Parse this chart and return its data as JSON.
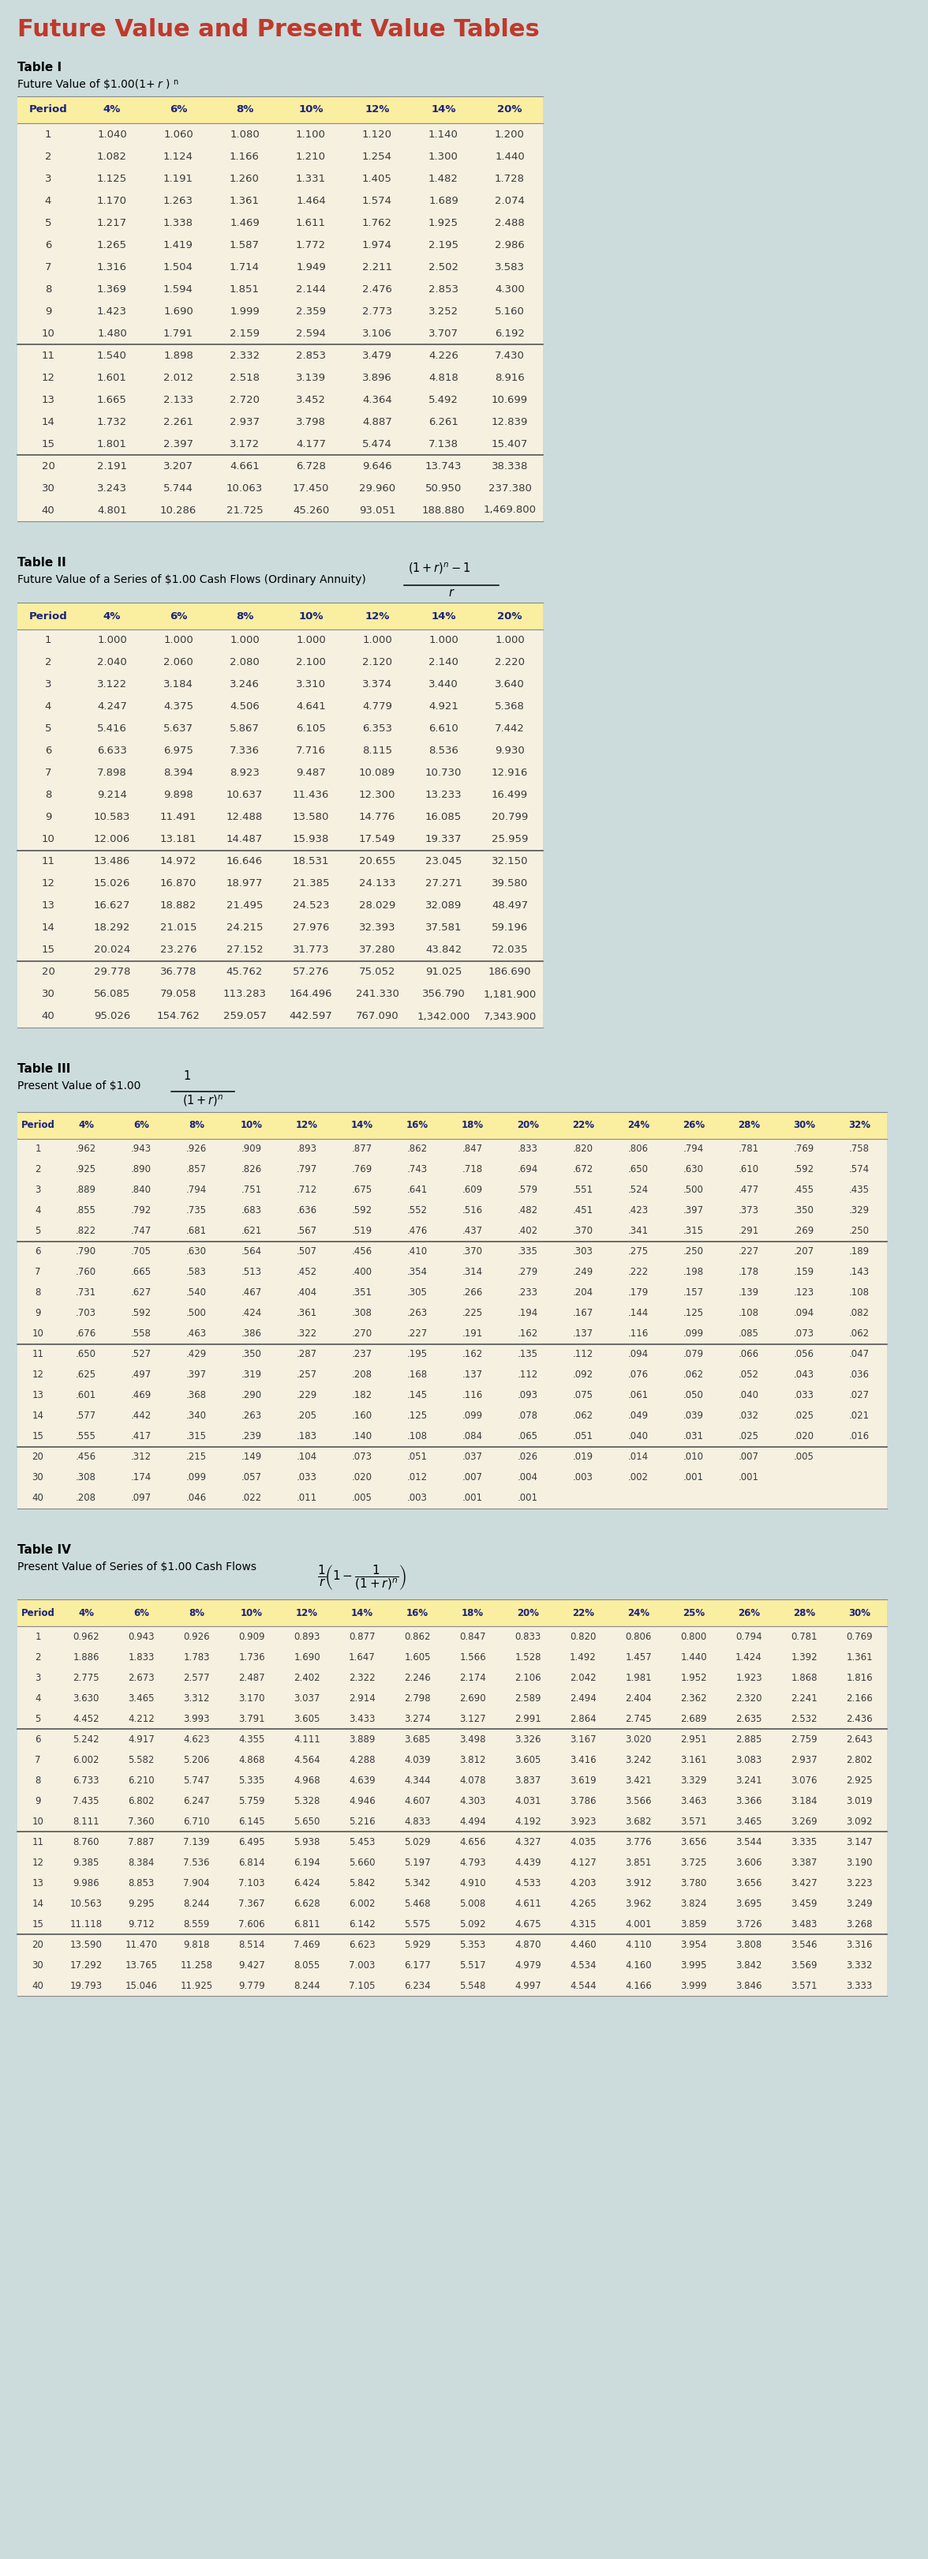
{
  "main_title": "Future Value and Present Value Tables",
  "bg_color": "#ccdcdc",
  "table_bg": "#f5f0e0",
  "header_bg": "#faeea0",
  "header_text_color": "#1a237e",
  "body_text_color": "#3a3a3a",
  "title_color": "#c0392b",
  "table1_title": "Table I",
  "table1_subtitle": "Future Value of $1.00(1+r)",
  "table1_subtitle_sup": "n",
  "table1_headers": [
    "Period",
    "4%",
    "6%",
    "8%",
    "10%",
    "12%",
    "14%",
    "20%"
  ],
  "table1_data": [
    [
      "1",
      "1.040",
      "1.060",
      "1.080",
      "1.100",
      "1.120",
      "1.140",
      "1.200"
    ],
    [
      "2",
      "1.082",
      "1.124",
      "1.166",
      "1.210",
      "1.254",
      "1.300",
      "1.440"
    ],
    [
      "3",
      "1.125",
      "1.191",
      "1.260",
      "1.331",
      "1.405",
      "1.482",
      "1.728"
    ],
    [
      "4",
      "1.170",
      "1.263",
      "1.361",
      "1.464",
      "1.574",
      "1.689",
      "2.074"
    ],
    [
      "5",
      "1.217",
      "1.338",
      "1.469",
      "1.611",
      "1.762",
      "1.925",
      "2.488"
    ],
    [
      "6",
      "1.265",
      "1.419",
      "1.587",
      "1.772",
      "1.974",
      "2.195",
      "2.986"
    ],
    [
      "7",
      "1.316",
      "1.504",
      "1.714",
      "1.949",
      "2.211",
      "2.502",
      "3.583"
    ],
    [
      "8",
      "1.369",
      "1.594",
      "1.851",
      "2.144",
      "2.476",
      "2.853",
      "4.300"
    ],
    [
      "9",
      "1.423",
      "1.690",
      "1.999",
      "2.359",
      "2.773",
      "3.252",
      "5.160"
    ],
    [
      "10",
      "1.480",
      "1.791",
      "2.159",
      "2.594",
      "3.106",
      "3.707",
      "6.192"
    ],
    [
      "11",
      "1.540",
      "1.898",
      "2.332",
      "2.853",
      "3.479",
      "4.226",
      "7.430"
    ],
    [
      "12",
      "1.601",
      "2.012",
      "2.518",
      "3.139",
      "3.896",
      "4.818",
      "8.916"
    ],
    [
      "13",
      "1.665",
      "2.133",
      "2.720",
      "3.452",
      "4.364",
      "5.492",
      "10.699"
    ],
    [
      "14",
      "1.732",
      "2.261",
      "2.937",
      "3.798",
      "4.887",
      "6.261",
      "12.839"
    ],
    [
      "15",
      "1.801",
      "2.397",
      "3.172",
      "4.177",
      "5.474",
      "7.138",
      "15.407"
    ],
    [
      "20",
      "2.191",
      "3.207",
      "4.661",
      "6.728",
      "9.646",
      "13.743",
      "38.338"
    ],
    [
      "30",
      "3.243",
      "5.744",
      "10.063",
      "17.450",
      "29.960",
      "50.950",
      "237.380"
    ],
    [
      "40",
      "4.801",
      "10.286",
      "21.725",
      "45.260",
      "93.051",
      "188.880",
      "1,469.800"
    ]
  ],
  "table1_separator_after": [
    10,
    15
  ],
  "table2_title": "Table II",
  "table2_subtitle": "Future Value of a Series of $1.00 Cash Flows (Ordinary Annuity)",
  "table2_headers": [
    "Period",
    "4%",
    "6%",
    "8%",
    "10%",
    "12%",
    "14%",
    "20%"
  ],
  "table2_data": [
    [
      "1",
      "1.000",
      "1.000",
      "1.000",
      "1.000",
      "1.000",
      "1.000",
      "1.000"
    ],
    [
      "2",
      "2.040",
      "2.060",
      "2.080",
      "2.100",
      "2.120",
      "2.140",
      "2.220"
    ],
    [
      "3",
      "3.122",
      "3.184",
      "3.246",
      "3.310",
      "3.374",
      "3.440",
      "3.640"
    ],
    [
      "4",
      "4.247",
      "4.375",
      "4.506",
      "4.641",
      "4.779",
      "4.921",
      "5.368"
    ],
    [
      "5",
      "5.416",
      "5.637",
      "5.867",
      "6.105",
      "6.353",
      "6.610",
      "7.442"
    ],
    [
      "6",
      "6.633",
      "6.975",
      "7.336",
      "7.716",
      "8.115",
      "8.536",
      "9.930"
    ],
    [
      "7",
      "7.898",
      "8.394",
      "8.923",
      "9.487",
      "10.089",
      "10.730",
      "12.916"
    ],
    [
      "8",
      "9.214",
      "9.898",
      "10.637",
      "11.436",
      "12.300",
      "13.233",
      "16.499"
    ],
    [
      "9",
      "10.583",
      "11.491",
      "12.488",
      "13.580",
      "14.776",
      "16.085",
      "20.799"
    ],
    [
      "10",
      "12.006",
      "13.181",
      "14.487",
      "15.938",
      "17.549",
      "19.337",
      "25.959"
    ],
    [
      "11",
      "13.486",
      "14.972",
      "16.646",
      "18.531",
      "20.655",
      "23.045",
      "32.150"
    ],
    [
      "12",
      "15.026",
      "16.870",
      "18.977",
      "21.385",
      "24.133",
      "27.271",
      "39.580"
    ],
    [
      "13",
      "16.627",
      "18.882",
      "21.495",
      "24.523",
      "28.029",
      "32.089",
      "48.497"
    ],
    [
      "14",
      "18.292",
      "21.015",
      "24.215",
      "27.976",
      "32.393",
      "37.581",
      "59.196"
    ],
    [
      "15",
      "20.024",
      "23.276",
      "27.152",
      "31.773",
      "37.280",
      "43.842",
      "72.035"
    ],
    [
      "20",
      "29.778",
      "36.778",
      "45.762",
      "57.276",
      "75.052",
      "91.025",
      "186.690"
    ],
    [
      "30",
      "56.085",
      "79.058",
      "113.283",
      "164.496",
      "241.330",
      "356.790",
      "1,181.900"
    ],
    [
      "40",
      "95.026",
      "154.762",
      "259.057",
      "442.597",
      "767.090",
      "1,342.000",
      "7,343.900"
    ]
  ],
  "table2_separator_after": [
    10,
    15
  ],
  "table3_title": "Table III",
  "table3_subtitle": "Present Value of $1.00",
  "table3_headers": [
    "Period",
    "4%",
    "6%",
    "8%",
    "10%",
    "12%",
    "14%",
    "16%",
    "18%",
    "20%",
    "22%",
    "24%",
    "26%",
    "28%",
    "30%",
    "32%"
  ],
  "table3_data": [
    [
      "1",
      ".962",
      ".943",
      ".926",
      ".909",
      ".893",
      ".877",
      ".862",
      ".847",
      ".833",
      ".820",
      ".806",
      ".794",
      ".781",
      ".769",
      ".758"
    ],
    [
      "2",
      ".925",
      ".890",
      ".857",
      ".826",
      ".797",
      ".769",
      ".743",
      ".718",
      ".694",
      ".672",
      ".650",
      ".630",
      ".610",
      ".592",
      ".574"
    ],
    [
      "3",
      ".889",
      ".840",
      ".794",
      ".751",
      ".712",
      ".675",
      ".641",
      ".609",
      ".579",
      ".551",
      ".524",
      ".500",
      ".477",
      ".455",
      ".435"
    ],
    [
      "4",
      ".855",
      ".792",
      ".735",
      ".683",
      ".636",
      ".592",
      ".552",
      ".516",
      ".482",
      ".451",
      ".423",
      ".397",
      ".373",
      ".350",
      ".329"
    ],
    [
      "5",
      ".822",
      ".747",
      ".681",
      ".621",
      ".567",
      ".519",
      ".476",
      ".437",
      ".402",
      ".370",
      ".341",
      ".315",
      ".291",
      ".269",
      ".250"
    ],
    [
      "6",
      ".790",
      ".705",
      ".630",
      ".564",
      ".507",
      ".456",
      ".410",
      ".370",
      ".335",
      ".303",
      ".275",
      ".250",
      ".227",
      ".207",
      ".189"
    ],
    [
      "7",
      ".760",
      ".665",
      ".583",
      ".513",
      ".452",
      ".400",
      ".354",
      ".314",
      ".279",
      ".249",
      ".222",
      ".198",
      ".178",
      ".159",
      ".143"
    ],
    [
      "8",
      ".731",
      ".627",
      ".540",
      ".467",
      ".404",
      ".351",
      ".305",
      ".266",
      ".233",
      ".204",
      ".179",
      ".157",
      ".139",
      ".123",
      ".108"
    ],
    [
      "9",
      ".703",
      ".592",
      ".500",
      ".424",
      ".361",
      ".308",
      ".263",
      ".225",
      ".194",
      ".167",
      ".144",
      ".125",
      ".108",
      ".094",
      ".082"
    ],
    [
      "10",
      ".676",
      ".558",
      ".463",
      ".386",
      ".322",
      ".270",
      ".227",
      ".191",
      ".162",
      ".137",
      ".116",
      ".099",
      ".085",
      ".073",
      ".062"
    ],
    [
      "11",
      ".650",
      ".527",
      ".429",
      ".350",
      ".287",
      ".237",
      ".195",
      ".162",
      ".135",
      ".112",
      ".094",
      ".079",
      ".066",
      ".056",
      ".047"
    ],
    [
      "12",
      ".625",
      ".497",
      ".397",
      ".319",
      ".257",
      ".208",
      ".168",
      ".137",
      ".112",
      ".092",
      ".076",
      ".062",
      ".052",
      ".043",
      ".036"
    ],
    [
      "13",
      ".601",
      ".469",
      ".368",
      ".290",
      ".229",
      ".182",
      ".145",
      ".116",
      ".093",
      ".075",
      ".061",
      ".050",
      ".040",
      ".033",
      ".027"
    ],
    [
      "14",
      ".577",
      ".442",
      ".340",
      ".263",
      ".205",
      ".160",
      ".125",
      ".099",
      ".078",
      ".062",
      ".049",
      ".039",
      ".032",
      ".025",
      ".021"
    ],
    [
      "15",
      ".555",
      ".417",
      ".315",
      ".239",
      ".183",
      ".140",
      ".108",
      ".084",
      ".065",
      ".051",
      ".040",
      ".031",
      ".025",
      ".020",
      ".016"
    ],
    [
      "20",
      ".456",
      ".312",
      ".215",
      ".149",
      ".104",
      ".073",
      ".051",
      ".037",
      ".026",
      ".019",
      ".014",
      ".010",
      ".007",
      ".005",
      ""
    ],
    [
      "30",
      ".308",
      ".174",
      ".099",
      ".057",
      ".033",
      ".020",
      ".012",
      ".007",
      ".004",
      ".003",
      ".002",
      ".001",
      ".001",
      "",
      ""
    ],
    [
      "40",
      ".208",
      ".097",
      ".046",
      ".022",
      ".011",
      ".005",
      ".003",
      ".001",
      ".001",
      "",
      "",
      "",
      "",
      "",
      ""
    ]
  ],
  "table3_separator_after": [
    5,
    10,
    15
  ],
  "table4_title": "Table IV",
  "table4_subtitle": "Present Value of Series of $1.00 Cash Flows",
  "table4_headers": [
    "Period",
    "4%",
    "6%",
    "8%",
    "10%",
    "12%",
    "14%",
    "16%",
    "18%",
    "20%",
    "22%",
    "24%",
    "25%",
    "26%",
    "28%",
    "30%"
  ],
  "table4_data": [
    [
      "1",
      "0.962",
      "0.943",
      "0.926",
      "0.909",
      "0.893",
      "0.877",
      "0.862",
      "0.847",
      "0.833",
      "0.820",
      "0.806",
      "0.800",
      "0.794",
      "0.781",
      "0.769"
    ],
    [
      "2",
      "1.886",
      "1.833",
      "1.783",
      "1.736",
      "1.690",
      "1.647",
      "1.605",
      "1.566",
      "1.528",
      "1.492",
      "1.457",
      "1.440",
      "1.424",
      "1.392",
      "1.361"
    ],
    [
      "3",
      "2.775",
      "2.673",
      "2.577",
      "2.487",
      "2.402",
      "2.322",
      "2.246",
      "2.174",
      "2.106",
      "2.042",
      "1.981",
      "1.952",
      "1.923",
      "1.868",
      "1.816"
    ],
    [
      "4",
      "3.630",
      "3.465",
      "3.312",
      "3.170",
      "3.037",
      "2.914",
      "2.798",
      "2.690",
      "2.589",
      "2.494",
      "2.404",
      "2.362",
      "2.320",
      "2.241",
      "2.166"
    ],
    [
      "5",
      "4.452",
      "4.212",
      "3.993",
      "3.791",
      "3.605",
      "3.433",
      "3.274",
      "3.127",
      "2.991",
      "2.864",
      "2.745",
      "2.689",
      "2.635",
      "2.532",
      "2.436"
    ],
    [
      "6",
      "5.242",
      "4.917",
      "4.623",
      "4.355",
      "4.111",
      "3.889",
      "3.685",
      "3.498",
      "3.326",
      "3.167",
      "3.020",
      "2.951",
      "2.885",
      "2.759",
      "2.643"
    ],
    [
      "7",
      "6.002",
      "5.582",
      "5.206",
      "4.868",
      "4.564",
      "4.288",
      "4.039",
      "3.812",
      "3.605",
      "3.416",
      "3.242",
      "3.161",
      "3.083",
      "2.937",
      "2.802"
    ],
    [
      "8",
      "6.733",
      "6.210",
      "5.747",
      "5.335",
      "4.968",
      "4.639",
      "4.344",
      "4.078",
      "3.837",
      "3.619",
      "3.421",
      "3.329",
      "3.241",
      "3.076",
      "2.925"
    ],
    [
      "9",
      "7.435",
      "6.802",
      "6.247",
      "5.759",
      "5.328",
      "4.946",
      "4.607",
      "4.303",
      "4.031",
      "3.786",
      "3.566",
      "3.463",
      "3.366",
      "3.184",
      "3.019"
    ],
    [
      "10",
      "8.111",
      "7.360",
      "6.710",
      "6.145",
      "5.650",
      "5.216",
      "4.833",
      "4.494",
      "4.192",
      "3.923",
      "3.682",
      "3.571",
      "3.465",
      "3.269",
      "3.092"
    ],
    [
      "11",
      "8.760",
      "7.887",
      "7.139",
      "6.495",
      "5.938",
      "5.453",
      "5.029",
      "4.656",
      "4.327",
      "4.035",
      "3.776",
      "3.656",
      "3.544",
      "3.335",
      "3.147"
    ],
    [
      "12",
      "9.385",
      "8.384",
      "7.536",
      "6.814",
      "6.194",
      "5.660",
      "5.197",
      "4.793",
      "4.439",
      "4.127",
      "3.851",
      "3.725",
      "3.606",
      "3.387",
      "3.190"
    ],
    [
      "13",
      "9.986",
      "8.853",
      "7.904",
      "7.103",
      "6.424",
      "5.842",
      "5.342",
      "4.910",
      "4.533",
      "4.203",
      "3.912",
      "3.780",
      "3.656",
      "3.427",
      "3.223"
    ],
    [
      "14",
      "10.563",
      "9.295",
      "8.244",
      "7.367",
      "6.628",
      "6.002",
      "5.468",
      "5.008",
      "4.611",
      "4.265",
      "3.962",
      "3.824",
      "3.695",
      "3.459",
      "3.249"
    ],
    [
      "15",
      "11.118",
      "9.712",
      "8.559",
      "7.606",
      "6.811",
      "6.142",
      "5.575",
      "5.092",
      "4.675",
      "4.315",
      "4.001",
      "3.859",
      "3.726",
      "3.483",
      "3.268"
    ],
    [
      "20",
      "13.590",
      "11.470",
      "9.818",
      "8.514",
      "7.469",
      "6.623",
      "5.929",
      "5.353",
      "4.870",
      "4.460",
      "4.110",
      "3.954",
      "3.808",
      "3.546",
      "3.316"
    ],
    [
      "30",
      "17.292",
      "13.765",
      "11.258",
      "9.427",
      "8.055",
      "7.003",
      "6.177",
      "5.517",
      "4.979",
      "4.534",
      "4.160",
      "3.995",
      "3.842",
      "3.569",
      "3.332"
    ],
    [
      "40",
      "19.793",
      "15.046",
      "11.925",
      "9.779",
      "8.244",
      "7.105",
      "6.234",
      "5.548",
      "4.997",
      "4.544",
      "4.166",
      "3.999",
      "3.846",
      "3.571",
      "3.333"
    ]
  ],
  "table4_separator_after": [
    5,
    10,
    15
  ]
}
